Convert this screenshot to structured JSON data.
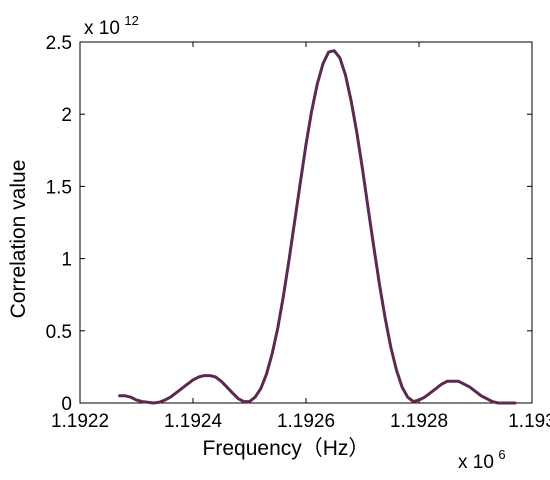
{
  "chart_data": {
    "type": "line",
    "xlabel": "Frequency（Hz）",
    "ylabel": "Correlation value",
    "xlim": [
      1.1922,
      1.193
    ],
    "ylim": [
      0,
      2.5
    ],
    "x_ticks": [
      1.1922,
      1.1924,
      1.1926,
      1.1928,
      1.193
    ],
    "x_tick_labels": [
      "1.1922",
      "1.1924",
      "1.1926",
      "1.1928",
      "1.193"
    ],
    "y_ticks": [
      0,
      0.5,
      1,
      1.5,
      2,
      2.5
    ],
    "y_tick_labels": [
      "0",
      "0.5",
      "1",
      "1.5",
      "2",
      "2.5"
    ],
    "x_multiplier": {
      "base": "x 10",
      "exponent": "6"
    },
    "y_multiplier": {
      "base": "x 10",
      "exponent": "12"
    },
    "grid": false,
    "series": [
      {
        "color": "#5b2a4e",
        "x": [
          1.19227,
          1.19228,
          1.19229,
          1.1923,
          1.19231,
          1.19232,
          1.19233,
          1.19234,
          1.19235,
          1.19236,
          1.19237,
          1.19238,
          1.19239,
          1.1924,
          1.19241,
          1.19242,
          1.19243,
          1.19244,
          1.19245,
          1.19246,
          1.19247,
          1.19248,
          1.19249,
          1.1925,
          1.19251,
          1.19252,
          1.19253,
          1.19254,
          1.19255,
          1.19256,
          1.19257,
          1.19258,
          1.19259,
          1.1926,
          1.19261,
          1.19262,
          1.19263,
          1.19264,
          1.19265,
          1.19266,
          1.19267,
          1.19268,
          1.19269,
          1.1927,
          1.19271,
          1.19272,
          1.19273,
          1.19274,
          1.19275,
          1.19276,
          1.19277,
          1.19278,
          1.19279,
          1.1928,
          1.19281,
          1.19282,
          1.19283,
          1.19284,
          1.19285,
          1.19286,
          1.19287,
          1.19288,
          1.19289,
          1.1929,
          1.19291,
          1.19292,
          1.19293,
          1.19294,
          1.19295,
          1.19296,
          1.19297
        ],
        "y": [
          0.05,
          0.05,
          0.04,
          0.02,
          0.01,
          0.005,
          0.0,
          0.005,
          0.02,
          0.04,
          0.07,
          0.1,
          0.13,
          0.16,
          0.18,
          0.19,
          0.19,
          0.18,
          0.15,
          0.11,
          0.07,
          0.03,
          0.01,
          0.01,
          0.04,
          0.1,
          0.2,
          0.34,
          0.52,
          0.74,
          0.99,
          1.26,
          1.53,
          1.79,
          2.02,
          2.21,
          2.35,
          2.43,
          2.44,
          2.39,
          2.27,
          2.09,
          1.87,
          1.62,
          1.35,
          1.08,
          0.82,
          0.59,
          0.39,
          0.23,
          0.11,
          0.04,
          0.01,
          0.02,
          0.04,
          0.07,
          0.1,
          0.13,
          0.15,
          0.15,
          0.15,
          0.13,
          0.11,
          0.08,
          0.05,
          0.03,
          0.01,
          0.0,
          0.0,
          0.0,
          0.0
        ]
      }
    ]
  }
}
